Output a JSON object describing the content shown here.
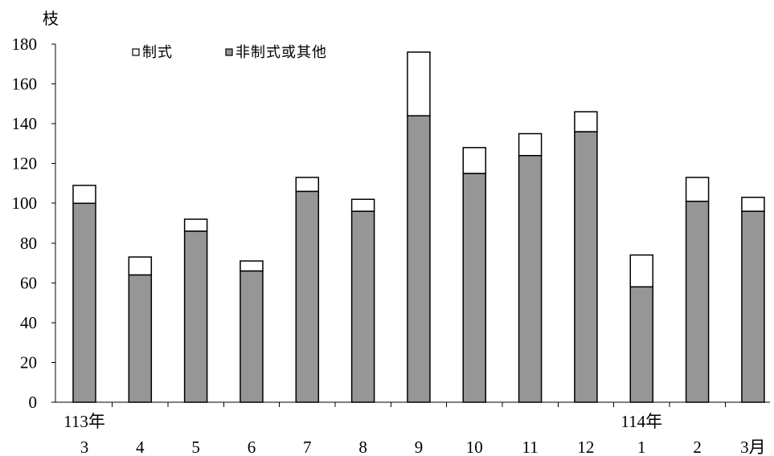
{
  "chart_data": {
    "type": "bar",
    "stacked": true,
    "ylabel": "枝",
    "ylim": [
      0,
      180
    ],
    "y_ticks": [
      0,
      20,
      40,
      60,
      80,
      100,
      120,
      140,
      160,
      180
    ],
    "categories": [
      "3",
      "4",
      "5",
      "6",
      "7",
      "8",
      "9",
      "10",
      "11",
      "12",
      "1",
      "2",
      "3月"
    ],
    "year_labels": [
      {
        "text": "113年",
        "category": 0
      },
      {
        "text": "114年",
        "category": 10
      }
    ],
    "series": [
      {
        "name": "制式",
        "color": "#ffffff",
        "values": [
          9,
          9,
          6,
          5,
          7,
          6,
          32,
          13,
          11,
          10,
          16,
          12,
          7
        ]
      },
      {
        "name": "非制式或其他",
        "color": "#969696",
        "values": [
          100,
          64,
          86,
          66,
          106,
          96,
          144,
          115,
          124,
          136,
          58,
          101,
          96
        ]
      }
    ],
    "grid": false,
    "legend": "top-left"
  }
}
